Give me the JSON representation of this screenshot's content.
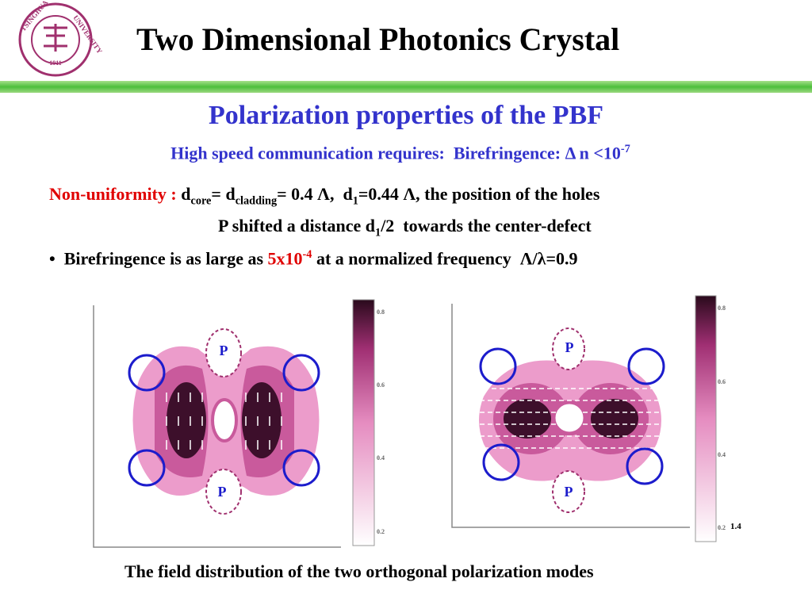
{
  "header": {
    "title": "Two Dimensional Photonics Crystal",
    "logo": {
      "top": "TSINGHUA",
      "right": "UNIVERSITY",
      "year": "1911"
    }
  },
  "subtitle": "Polarization properties of the PBF",
  "requirement": {
    "text": "High speed communication requires:  Birefringence: Δ n <10",
    "exp": "-7"
  },
  "nonuniformity": {
    "label": "Non-uniformity : ",
    "parts": [
      "d",
      "core",
      "= d",
      "cladding",
      "= 0.4 Λ,  d",
      "1",
      "=0.44 Λ, the position of the holes"
    ],
    "line2": [
      "P shifted a distance d",
      "1",
      "/2  towards the center-defect"
    ]
  },
  "bullet": {
    "mark": "•",
    "parts": [
      "Birefringence is as large as ",
      "5x10",
      "-4",
      " at a normalized frequency  Λ/λ=0.9"
    ]
  },
  "figures": [
    {
      "labels": [
        "P",
        "P"
      ],
      "colorbar_ticks": [
        0.8,
        0.6,
        0.4,
        0.2
      ]
    },
    {
      "labels": [
        "P",
        "P"
      ],
      "colorbar_ticks": [
        0.8,
        0.6,
        0.4,
        0.2
      ],
      "note": "1.4"
    }
  ],
  "caption": "The field distribution of the two orthogonal polarization modes"
}
